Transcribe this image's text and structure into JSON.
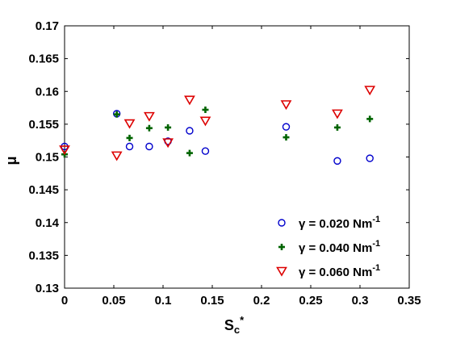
{
  "chart_data": {
    "type": "scatter",
    "xlabel": "S",
    "xlabel_sub": "c",
    "xlabel_sup": "*",
    "ylabel": "μ",
    "xlim": [
      0,
      0.35
    ],
    "ylim": [
      0.13,
      0.17
    ],
    "grid": false,
    "legend_position": "bottom-right",
    "x_ticks": [
      "0",
      "0.05",
      "0.1",
      "0.15",
      "0.2",
      "0.25",
      "0.3",
      "0.35"
    ],
    "y_ticks": [
      "0.13",
      "0.135",
      "0.14",
      "0.145",
      "0.15",
      "0.155",
      "0.16",
      "0.165",
      "0.17"
    ],
    "series": [
      {
        "name": "γ = 0.020 Nm-1",
        "name_main": "γ = 0.020 Nm",
        "name_sup": "-1",
        "marker": "circle",
        "color": "#0000cc",
        "points": [
          [
            0.0,
            0.1516
          ],
          [
            0.053,
            0.1566
          ],
          [
            0.066,
            0.1516
          ],
          [
            0.086,
            0.1516
          ],
          [
            0.105,
            0.1524
          ],
          [
            0.127,
            0.154
          ],
          [
            0.143,
            0.1509
          ],
          [
            0.225,
            0.1546
          ],
          [
            0.277,
            0.1494
          ],
          [
            0.31,
            0.1498
          ]
        ]
      },
      {
        "name": "γ = 0.040 Nm-1",
        "name_main": "γ = 0.040 Nm",
        "name_sup": "-1",
        "marker": "plus",
        "color": "#006400",
        "points": [
          [
            0.0,
            0.1504
          ],
          [
            0.053,
            0.1565
          ],
          [
            0.066,
            0.1529
          ],
          [
            0.086,
            0.1544
          ],
          [
            0.105,
            0.1545
          ],
          [
            0.127,
            0.1506
          ],
          [
            0.143,
            0.1572
          ],
          [
            0.225,
            0.153
          ],
          [
            0.277,
            0.1545
          ],
          [
            0.31,
            0.1558
          ]
        ]
      },
      {
        "name": "γ = 0.060 Nm-1",
        "name_main": "γ = 0.060 Nm",
        "name_sup": "-1",
        "marker": "triangle-down",
        "color": "#dd0000",
        "points": [
          [
            0.0,
            0.1511
          ],
          [
            0.053,
            0.1502
          ],
          [
            0.066,
            0.1551
          ],
          [
            0.086,
            0.1562
          ],
          [
            0.105,
            0.1522
          ],
          [
            0.127,
            0.1587
          ],
          [
            0.143,
            0.1555
          ],
          [
            0.225,
            0.158
          ],
          [
            0.277,
            0.1566
          ],
          [
            0.31,
            0.1602
          ]
        ]
      }
    ]
  }
}
